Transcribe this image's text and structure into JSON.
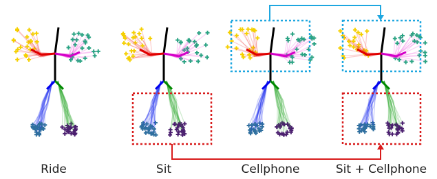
{
  "labels": [
    "Ride",
    "Sit",
    "Cellphone",
    "Sit + Cellphone"
  ]
}
